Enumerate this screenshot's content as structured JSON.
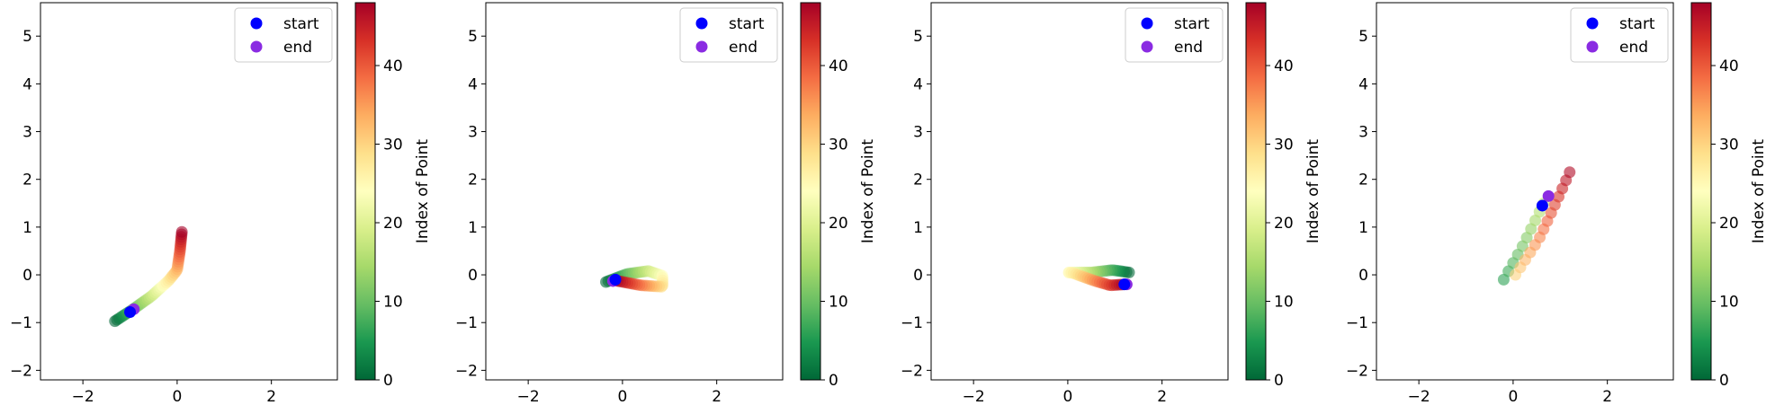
{
  "colorbar": {
    "label": "Index of Point",
    "ticks": [
      0,
      10,
      20,
      30,
      40
    ],
    "range": [
      0,
      48
    ],
    "colormap": "RdYlGn_r"
  },
  "legend": {
    "start_label": "start",
    "end_label": "end",
    "start_color": "#0000ff",
    "end_color": "#8a2be2"
  },
  "chart_data": [
    {
      "type": "scatter",
      "xlim": [
        -2.9,
        3.4
      ],
      "ylim": [
        -2.2,
        5.7
      ],
      "xticks": [
        -2,
        0,
        2
      ],
      "yticks": [
        -2,
        -1,
        0,
        1,
        2,
        3,
        4,
        5
      ],
      "start": [
        -1.0,
        -0.78
      ],
      "end": [
        -0.92,
        -0.72
      ],
      "path": [
        [
          -1.32,
          -0.97
        ],
        [
          -0.95,
          -0.73
        ],
        [
          -0.55,
          -0.45
        ],
        [
          -0.18,
          -0.12
        ],
        [
          0.0,
          0.1
        ],
        [
          0.06,
          0.5
        ],
        [
          0.1,
          0.9
        ]
      ]
    },
    {
      "type": "scatter",
      "xlim": [
        -2.9,
        3.4
      ],
      "ylim": [
        -2.2,
        5.7
      ],
      "xticks": [
        -2,
        0,
        2
      ],
      "yticks": [
        -2,
        -1,
        0,
        1,
        2,
        3,
        4,
        5
      ],
      "start": [
        -0.15,
        -0.1
      ],
      "end": [
        -0.2,
        -0.13
      ],
      "path": [
        [
          -0.35,
          -0.15
        ],
        [
          0.1,
          0.02
        ],
        [
          0.55,
          0.08
        ],
        [
          0.85,
          -0.02
        ],
        [
          0.85,
          -0.25
        ],
        [
          0.4,
          -0.22
        ],
        [
          -0.15,
          -0.12
        ]
      ]
    },
    {
      "type": "scatter",
      "xlim": [
        -2.9,
        3.4
      ],
      "ylim": [
        -2.2,
        5.7
      ],
      "xticks": [
        -2,
        0,
        2
      ],
      "yticks": [
        -2,
        -1,
        0,
        1,
        2,
        3,
        4,
        5
      ],
      "start": [
        1.2,
        -0.2
      ],
      "end": [
        1.25,
        -0.2
      ],
      "path": [
        [
          1.3,
          0.05
        ],
        [
          0.95,
          0.1
        ],
        [
          0.5,
          0.05
        ],
        [
          0.0,
          0.05
        ],
        [
          0.1,
          0.04
        ],
        [
          0.55,
          -0.12
        ],
        [
          0.9,
          -0.22
        ],
        [
          1.2,
          -0.2
        ]
      ]
    },
    {
      "type": "scatter",
      "xlim": [
        -2.9,
        3.4
      ],
      "ylim": [
        -2.2,
        5.7
      ],
      "xticks": [
        -2,
        0,
        2
      ],
      "yticks": [
        -2,
        -1,
        0,
        1,
        2,
        3,
        4,
        5
      ],
      "start": [
        0.62,
        1.45
      ],
      "end": [
        0.75,
        1.65
      ],
      "path_a": [
        [
          -0.2,
          -0.1
        ],
        [
          0.2,
          0.6
        ],
        [
          0.65,
          1.5
        ]
      ],
      "path_b": [
        [
          0.05,
          0.0
        ],
        [
          0.55,
          0.75
        ],
        [
          0.95,
          1.6
        ],
        [
          1.2,
          2.15
        ]
      ]
    }
  ]
}
